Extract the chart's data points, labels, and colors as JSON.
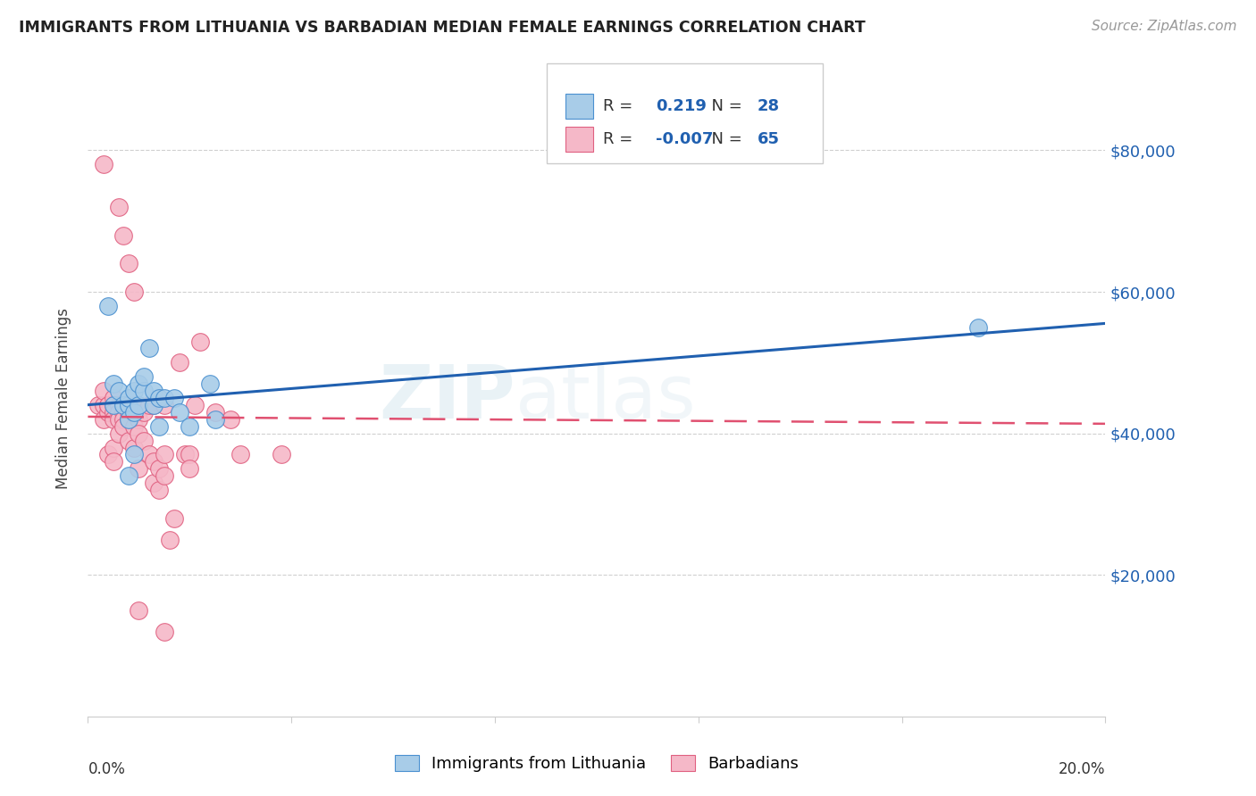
{
  "title": "IMMIGRANTS FROM LITHUANIA VS BARBADIAN MEDIAN FEMALE EARNINGS CORRELATION CHART",
  "source": "Source: ZipAtlas.com",
  "ylabel": "Median Female Earnings",
  "y_ticks": [
    0,
    20000,
    40000,
    60000,
    80000
  ],
  "y_tick_labels": [
    "",
    "$20,000",
    "$40,000",
    "$60,000",
    "$80,000"
  ],
  "x_min": 0.0,
  "x_max": 0.2,
  "y_min": 0,
  "y_max": 90000,
  "legend_label1": "Immigrants from Lithuania",
  "legend_label2": "Barbadians",
  "legend_R1": "0.219",
  "legend_N1": "28",
  "legend_R2": "-0.007",
  "legend_N2": "65",
  "blue_color": "#a8cce8",
  "pink_color": "#f5b8c8",
  "blue_edge_color": "#4a90d0",
  "pink_edge_color": "#e06080",
  "blue_line_color": "#2060b0",
  "pink_line_color": "#e05070",
  "watermark": "ZIPatlas",
  "blue_x": [
    0.004,
    0.005,
    0.005,
    0.006,
    0.007,
    0.008,
    0.008,
    0.008,
    0.009,
    0.009,
    0.01,
    0.01,
    0.011,
    0.011,
    0.012,
    0.013,
    0.013,
    0.014,
    0.014,
    0.015,
    0.017,
    0.018,
    0.02,
    0.024,
    0.025,
    0.008,
    0.009,
    0.175
  ],
  "blue_y": [
    58000,
    47000,
    44000,
    46000,
    44000,
    44000,
    45000,
    42000,
    43000,
    46000,
    44000,
    47000,
    46000,
    48000,
    52000,
    44000,
    46000,
    41000,
    45000,
    45000,
    45000,
    43000,
    41000,
    47000,
    42000,
    34000,
    37000,
    55000
  ],
  "pink_x": [
    0.002,
    0.003,
    0.003,
    0.003,
    0.004,
    0.004,
    0.004,
    0.004,
    0.005,
    0.005,
    0.005,
    0.005,
    0.005,
    0.005,
    0.006,
    0.006,
    0.006,
    0.006,
    0.007,
    0.007,
    0.007,
    0.007,
    0.008,
    0.008,
    0.008,
    0.008,
    0.009,
    0.009,
    0.009,
    0.009,
    0.01,
    0.01,
    0.01,
    0.01,
    0.011,
    0.011,
    0.012,
    0.012,
    0.013,
    0.013,
    0.013,
    0.014,
    0.014,
    0.015,
    0.015,
    0.015,
    0.016,
    0.017,
    0.018,
    0.019,
    0.02,
    0.02,
    0.021,
    0.022,
    0.025,
    0.028,
    0.03,
    0.038,
    0.006,
    0.007,
    0.008,
    0.009,
    0.01,
    0.015,
    0.003
  ],
  "pink_y": [
    44000,
    44000,
    42000,
    46000,
    44000,
    43000,
    44000,
    37000,
    45000,
    44000,
    43000,
    42000,
    38000,
    36000,
    44000,
    43000,
    42000,
    40000,
    44000,
    43000,
    42000,
    41000,
    44000,
    43000,
    42000,
    39000,
    44000,
    43000,
    41000,
    38000,
    44000,
    42000,
    40000,
    35000,
    43000,
    39000,
    44000,
    37000,
    44000,
    36000,
    33000,
    32000,
    35000,
    44000,
    37000,
    34000,
    25000,
    28000,
    50000,
    37000,
    37000,
    35000,
    44000,
    53000,
    43000,
    42000,
    37000,
    37000,
    72000,
    68000,
    64000,
    60000,
    15000,
    12000,
    78000
  ]
}
